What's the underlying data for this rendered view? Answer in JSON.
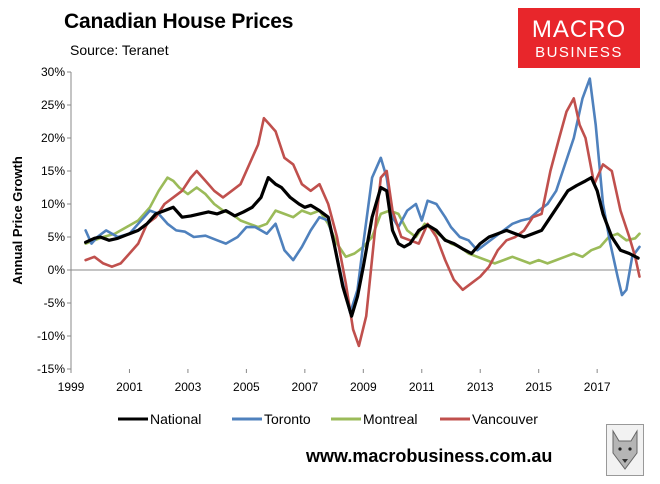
{
  "header": {
    "title": "Canadian House Prices",
    "subtitle": "Source: Teranet"
  },
  "logo": {
    "line1": "MACRO",
    "line2": "BUSINESS"
  },
  "footer": {
    "url": "www.macrobusiness.com.au"
  },
  "colors": {
    "National": "#000000",
    "Toronto": "#4f81bd",
    "Montreal": "#9bbb59",
    "Vancouver": "#c0504d",
    "logo_bg": "#e8262b"
  },
  "chart_data": {
    "type": "line",
    "title": "Canadian House Prices",
    "subtitle": "Source: Teranet",
    "xlabel": "",
    "ylabel": "Annual Price Growth",
    "xlim": [
      1999,
      2018.5
    ],
    "ylim": [
      -15,
      30
    ],
    "x_ticks": [
      1999,
      2001,
      2003,
      2005,
      2007,
      2009,
      2011,
      2013,
      2015,
      2017
    ],
    "x_tick_labels": [
      "1999",
      "2001",
      "2003",
      "2005",
      "2007",
      "2009",
      "2011",
      "2013",
      "2015",
      "2017"
    ],
    "y_ticks": [
      -15,
      -10,
      -5,
      0,
      5,
      10,
      15,
      20,
      25,
      30
    ],
    "y_tick_labels": [
      "-15%",
      "-10%",
      "-5%",
      "0%",
      "5%",
      "10%",
      "15%",
      "20%",
      "25%",
      "30%"
    ],
    "grid": false,
    "legend_position": "bottom",
    "series": [
      {
        "name": "National",
        "x": [
          1999.5,
          1999.8,
          2000.0,
          2000.3,
          2000.6,
          2001.0,
          2001.3,
          2001.6,
          2001.9,
          2002.2,
          2002.5,
          2002.8,
          2003.1,
          2003.4,
          2003.7,
          2004.0,
          2004.3,
          2004.6,
          2004.9,
          2005.2,
          2005.5,
          2005.75,
          2006.0,
          2006.2,
          2006.5,
          2006.8,
          2007.0,
          2007.2,
          2007.5,
          2007.8,
          2008.0,
          2008.3,
          2008.6,
          2008.8,
          2009.0,
          2009.3,
          2009.6,
          2009.8,
          2010.0,
          2010.2,
          2010.4,
          2010.6,
          2010.9,
          2011.2,
          2011.5,
          2011.8,
          2012.1,
          2012.4,
          2012.7,
          2013.0,
          2013.3,
          2013.6,
          2013.9,
          2014.2,
          2014.5,
          2014.8,
          2015.1,
          2015.4,
          2015.7,
          2016.0,
          2016.3,
          2016.6,
          2016.8,
          2017.0,
          2017.2,
          2017.5,
          2017.8,
          2018.1,
          2018.4
        ],
        "values": [
          4.2,
          4.8,
          5.0,
          4.5,
          4.8,
          5.5,
          6.0,
          7.0,
          8.5,
          9.0,
          9.5,
          8.0,
          8.2,
          8.5,
          8.8,
          8.5,
          9.0,
          8.2,
          8.8,
          9.5,
          11.0,
          14.0,
          13.0,
          12.5,
          11.0,
          10.0,
          9.5,
          9.8,
          9.0,
          8.0,
          4.0,
          -2.5,
          -7.0,
          -4.0,
          0.5,
          8.0,
          12.5,
          12.0,
          6.0,
          4.0,
          3.5,
          4.0,
          6.0,
          6.8,
          6.0,
          4.5,
          4.0,
          3.2,
          2.5,
          4.0,
          5.0,
          5.5,
          6.0,
          5.5,
          5.0,
          5.5,
          6.0,
          8.0,
          10.0,
          12.0,
          12.8,
          13.5,
          14.0,
          12.0,
          8.5,
          5.0,
          3.0,
          2.5,
          1.8
        ]
      },
      {
        "name": "Toronto",
        "x": [
          1999.5,
          1999.7,
          1999.9,
          2000.2,
          2000.6,
          2001.0,
          2001.3,
          2001.7,
          2002.0,
          2002.3,
          2002.6,
          2002.9,
          2003.2,
          2003.6,
          2004.0,
          2004.3,
          2004.7,
          2005.0,
          2005.3,
          2005.5,
          2005.7,
          2006.0,
          2006.3,
          2006.6,
          2006.9,
          2007.2,
          2007.5,
          2007.8,
          2008.0,
          2008.3,
          2008.55,
          2008.8,
          2009.0,
          2009.3,
          2009.6,
          2009.8,
          2010.0,
          2010.2,
          2010.5,
          2010.8,
          2011.0,
          2011.2,
          2011.5,
          2011.8,
          2012.0,
          2012.3,
          2012.6,
          2012.9,
          2013.2,
          2013.5,
          2013.8,
          2014.1,
          2014.4,
          2014.7,
          2015.0,
          2015.3,
          2015.6,
          2015.9,
          2016.2,
          2016.5,
          2016.75,
          2016.95,
          2017.2,
          2017.45,
          2017.7,
          2017.85,
          2018.0,
          2018.2,
          2018.45
        ],
        "values": [
          6.0,
          4.0,
          5.0,
          6.0,
          5.0,
          5.5,
          7.0,
          9.0,
          8.5,
          7.0,
          6.0,
          5.8,
          5.0,
          5.2,
          4.5,
          4.0,
          5.0,
          6.5,
          6.5,
          6.0,
          5.5,
          7.0,
          3.0,
          1.5,
          3.5,
          6.0,
          8.0,
          7.5,
          4.0,
          -2.0,
          -6.5,
          -3.0,
          4.0,
          14.0,
          17.0,
          14.0,
          8.0,
          6.5,
          9.0,
          10.0,
          7.5,
          10.5,
          10.0,
          8.0,
          6.5,
          5.0,
          4.5,
          3.0,
          4.0,
          5.0,
          6.0,
          7.0,
          7.5,
          7.8,
          9.0,
          10.0,
          12.0,
          16.0,
          20.0,
          26.0,
          29.0,
          22.0,
          10.0,
          4.0,
          -1.0,
          -3.8,
          -3.0,
          2.0,
          3.5
        ]
      },
      {
        "name": "Montreal",
        "x": [
          1999.5,
          1999.8,
          2000.1,
          2000.5,
          2000.9,
          2001.3,
          2001.7,
          2002.0,
          2002.3,
          2002.5,
          2002.7,
          2003.0,
          2003.3,
          2003.6,
          2003.9,
          2004.2,
          2004.5,
          2004.8,
          2005.1,
          2005.4,
          2005.7,
          2006.0,
          2006.3,
          2006.6,
          2006.9,
          2007.2,
          2007.5,
          2007.8,
          2008.1,
          2008.4,
          2008.7,
          2009.0,
          2009.3,
          2009.6,
          2009.9,
          2010.2,
          2010.5,
          2010.8,
          2011.1,
          2011.4,
          2011.7,
          2012.0,
          2012.3,
          2012.6,
          2012.9,
          2013.2,
          2013.5,
          2013.8,
          2014.1,
          2014.4,
          2014.7,
          2015.0,
          2015.3,
          2015.6,
          2015.9,
          2016.2,
          2016.5,
          2016.8,
          2017.1,
          2017.4,
          2017.7,
          2018.0,
          2018.3,
          2018.45
        ],
        "values": [
          4.0,
          4.5,
          5.0,
          5.5,
          6.5,
          7.5,
          9.5,
          12.0,
          14.0,
          13.5,
          12.5,
          11.5,
          12.5,
          11.5,
          10.0,
          9.0,
          8.5,
          7.5,
          7.0,
          6.5,
          7.0,
          9.0,
          8.5,
          8.0,
          9.0,
          8.5,
          9.0,
          7.0,
          4.0,
          2.0,
          2.5,
          3.5,
          5.0,
          8.5,
          9.0,
          8.5,
          6.0,
          5.0,
          7.0,
          6.0,
          5.0,
          4.0,
          3.5,
          2.5,
          2.0,
          1.5,
          1.0,
          1.5,
          2.0,
          1.5,
          1.0,
          1.5,
          1.0,
          1.5,
          2.0,
          2.5,
          2.0,
          3.0,
          3.5,
          5.0,
          5.5,
          4.5,
          4.8,
          5.5
        ]
      },
      {
        "name": "Vancouver",
        "x": [
          1999.5,
          1999.8,
          2000.1,
          2000.4,
          2000.7,
          2001.0,
          2001.3,
          2001.6,
          2001.9,
          2002.2,
          2002.5,
          2002.8,
          2003.1,
          2003.3,
          2003.6,
          2003.9,
          2004.2,
          2004.5,
          2004.8,
          2005.1,
          2005.4,
          2005.6,
          2005.8,
          2006.0,
          2006.3,
          2006.6,
          2006.9,
          2007.2,
          2007.5,
          2007.8,
          2008.1,
          2008.4,
          2008.65,
          2008.85,
          2009.1,
          2009.4,
          2009.6,
          2009.8,
          2010.0,
          2010.3,
          2010.6,
          2010.9,
          2011.2,
          2011.5,
          2011.8,
          2012.1,
          2012.4,
          2012.7,
          2013.0,
          2013.3,
          2013.6,
          2013.9,
          2014.2,
          2014.5,
          2014.8,
          2015.1,
          2015.4,
          2015.7,
          2015.95,
          2016.2,
          2016.4,
          2016.6,
          2016.9,
          2017.2,
          2017.5,
          2017.8,
          2018.1,
          2018.3,
          2018.45
        ],
        "values": [
          1.5,
          2.0,
          1.0,
          0.5,
          1.0,
          2.5,
          4.0,
          7.0,
          8.0,
          10.0,
          11.0,
          12.0,
          14.0,
          15.0,
          13.5,
          12.0,
          11.0,
          12.0,
          13.0,
          16.0,
          19.0,
          23.0,
          22.0,
          21.0,
          17.0,
          16.0,
          13.0,
          12.0,
          13.0,
          10.0,
          5.0,
          -2.0,
          -9.0,
          -11.5,
          -7.0,
          6.0,
          14.0,
          15.0,
          9.0,
          5.0,
          4.5,
          4.0,
          7.0,
          5.0,
          1.5,
          -1.5,
          -3.0,
          -2.0,
          -1.0,
          0.5,
          3.0,
          4.5,
          5.0,
          6.0,
          8.0,
          8.5,
          15.0,
          20.0,
          24.0,
          26.0,
          22.0,
          20.0,
          13.0,
          16.0,
          15.0,
          9.0,
          5.0,
          2.0,
          -1.0
        ]
      }
    ]
  }
}
